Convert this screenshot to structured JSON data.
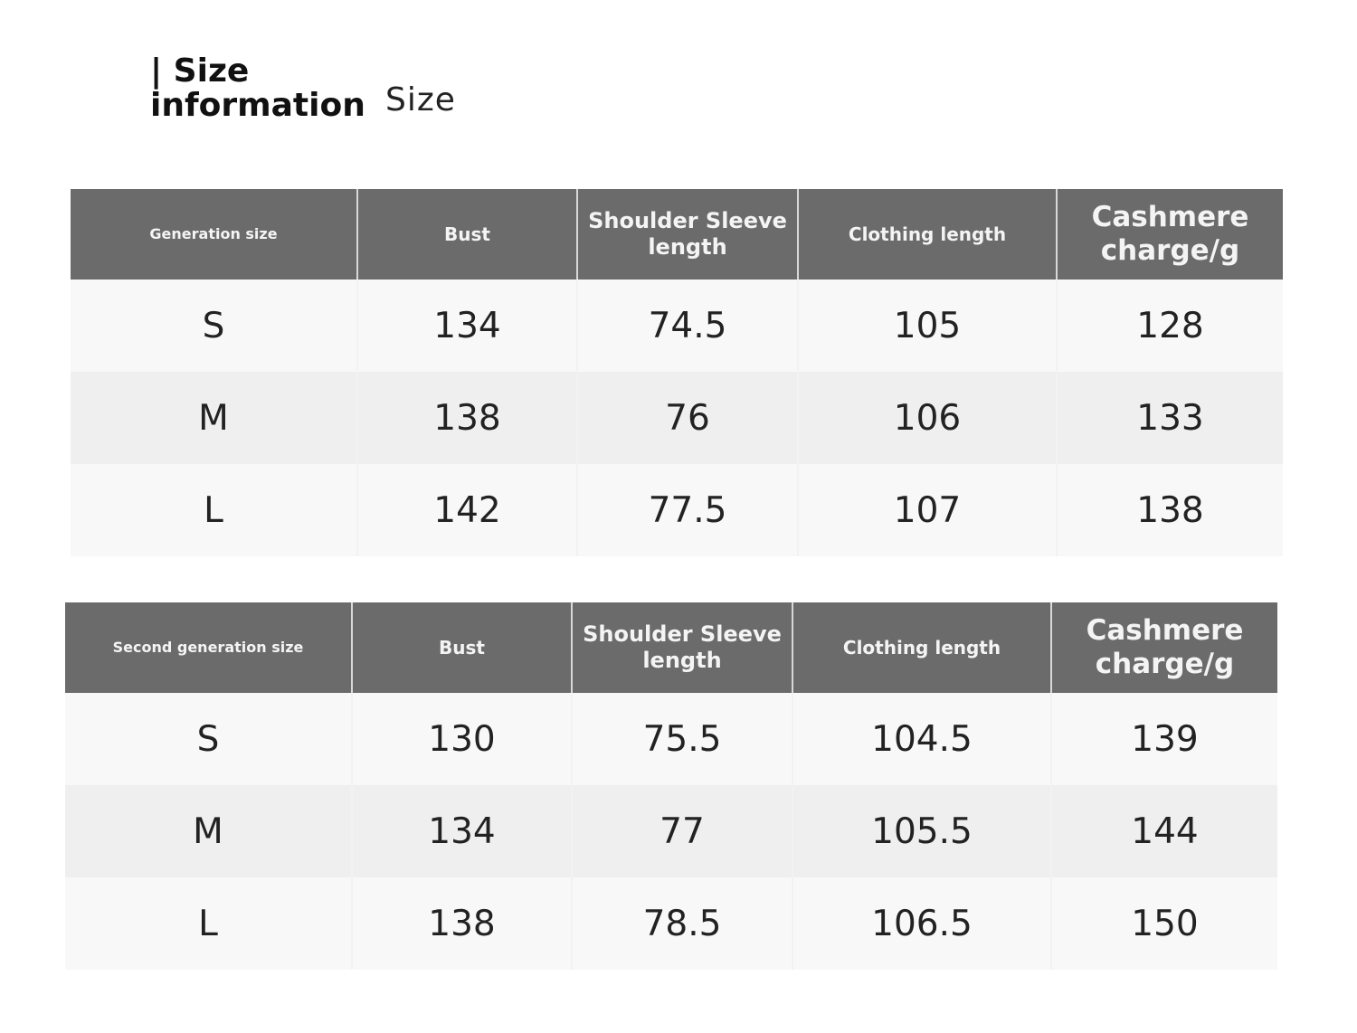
{
  "title": "| Size information",
  "subtitle": "Size",
  "colors": {
    "header_bg": "#6b6b6b",
    "row_light": "#f8f8f8",
    "row_dark": "#efefef"
  },
  "tables": [
    {
      "headers": [
        "Generation size",
        "Bust",
        "Shoulder Sleeve length",
        "Clothing length",
        "Cashmere charge/g"
      ],
      "rows": [
        [
          "S",
          "134",
          "74.5",
          "105",
          "128"
        ],
        [
          "M",
          "138",
          "76",
          "106",
          "133"
        ],
        [
          "L",
          "142",
          "77.5",
          "107",
          "138"
        ]
      ]
    },
    {
      "headers": [
        "Second generation size",
        "Bust",
        "Shoulder Sleeve length",
        "Clothing length",
        "Cashmere charge/g"
      ],
      "rows": [
        [
          "S",
          "130",
          "75.5",
          "104.5",
          "139"
        ],
        [
          "M",
          "134",
          "77",
          "105.5",
          "144"
        ],
        [
          "L",
          "138",
          "78.5",
          "106.5",
          "150"
        ]
      ]
    }
  ]
}
